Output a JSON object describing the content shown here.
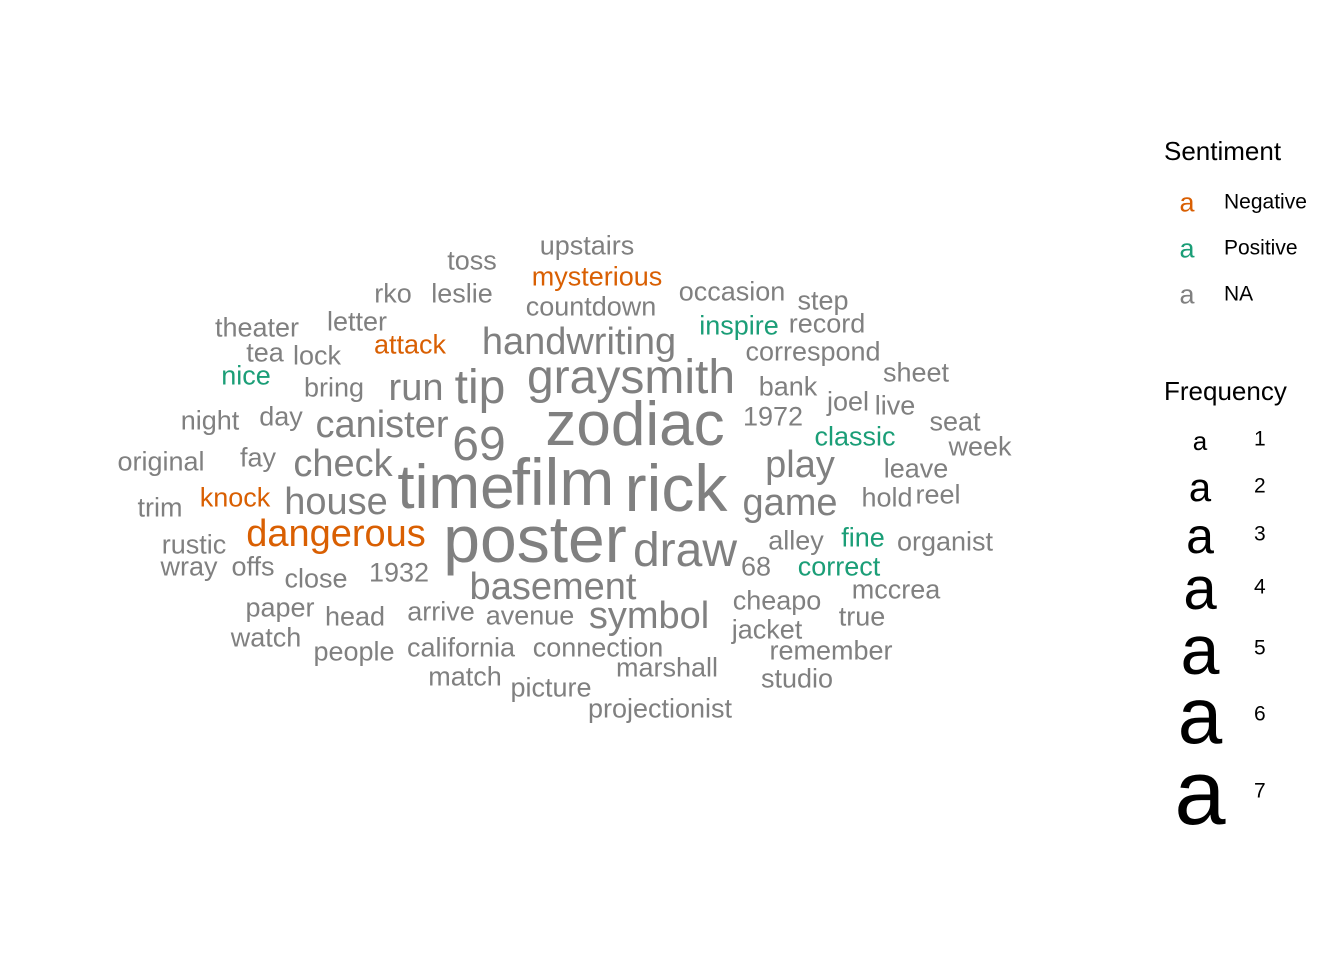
{
  "chart_data": {
    "type": "wordcloud",
    "legend": {
      "sentiment": {
        "title": "Sentiment",
        "key_glyph": "a",
        "entries": [
          {
            "label": "Negative",
            "color": "#D95F02"
          },
          {
            "label": "Positive",
            "color": "#1B9E77"
          },
          {
            "label": "NA",
            "color": "#808080"
          }
        ]
      },
      "frequency": {
        "title": "Frequency",
        "key_glyph": "a",
        "entries": [
          {
            "label": "1",
            "value": 1
          },
          {
            "label": "2",
            "value": 2
          },
          {
            "label": "3",
            "value": 3
          },
          {
            "label": "4",
            "value": 4
          },
          {
            "label": "5",
            "value": 5
          },
          {
            "label": "6",
            "value": 6
          },
          {
            "label": "7",
            "value": 7
          }
        ]
      }
    },
    "words": [
      {
        "word": "film",
        "frequency": 7,
        "sentiment": "NA"
      },
      {
        "word": "rick",
        "frequency": 7,
        "sentiment": "NA"
      },
      {
        "word": "poster",
        "frequency": 7,
        "sentiment": "NA"
      },
      {
        "word": "zodiac",
        "frequency": 6,
        "sentiment": "NA"
      },
      {
        "word": "time",
        "frequency": 6,
        "sentiment": "NA"
      },
      {
        "word": "graysmith",
        "frequency": 5,
        "sentiment": "NA"
      },
      {
        "word": "draw",
        "frequency": 5,
        "sentiment": "NA"
      },
      {
        "word": "69",
        "frequency": 5,
        "sentiment": "NA"
      },
      {
        "word": "tip",
        "frequency": 5,
        "sentiment": "NA"
      },
      {
        "word": "handwriting",
        "frequency": 4,
        "sentiment": "NA"
      },
      {
        "word": "basement",
        "frequency": 4,
        "sentiment": "NA"
      },
      {
        "word": "symbol",
        "frequency": 4,
        "sentiment": "NA"
      },
      {
        "word": "check",
        "frequency": 4,
        "sentiment": "NA"
      },
      {
        "word": "house",
        "frequency": 4,
        "sentiment": "NA"
      },
      {
        "word": "canister",
        "frequency": 4,
        "sentiment": "NA"
      },
      {
        "word": "game",
        "frequency": 4,
        "sentiment": "NA"
      },
      {
        "word": "play",
        "frequency": 4,
        "sentiment": "NA"
      },
      {
        "word": "run",
        "frequency": 4,
        "sentiment": "NA"
      },
      {
        "word": "dangerous",
        "frequency": 4,
        "sentiment": "Negative"
      },
      {
        "word": "mysterious",
        "frequency": 2,
        "sentiment": "Negative"
      },
      {
        "word": "attack",
        "frequency": 2,
        "sentiment": "Negative"
      },
      {
        "word": "knock",
        "frequency": 2,
        "sentiment": "Negative"
      },
      {
        "word": "inspire",
        "frequency": 2,
        "sentiment": "Positive"
      },
      {
        "word": "nice",
        "frequency": 2,
        "sentiment": "Positive"
      },
      {
        "word": "classic",
        "frequency": 2,
        "sentiment": "Positive"
      },
      {
        "word": "fine",
        "frequency": 2,
        "sentiment": "Positive"
      },
      {
        "word": "correct",
        "frequency": 2,
        "sentiment": "Positive"
      },
      {
        "word": "upstairs",
        "frequency": 2,
        "sentiment": "NA"
      },
      {
        "word": "toss",
        "frequency": 2,
        "sentiment": "NA"
      },
      {
        "word": "rko",
        "frequency": 2,
        "sentiment": "NA"
      },
      {
        "word": "leslie",
        "frequency": 2,
        "sentiment": "NA"
      },
      {
        "word": "countdown",
        "frequency": 2,
        "sentiment": "NA"
      },
      {
        "word": "occasion",
        "frequency": 2,
        "sentiment": "NA"
      },
      {
        "word": "step",
        "frequency": 2,
        "sentiment": "NA"
      },
      {
        "word": "record",
        "frequency": 2,
        "sentiment": "NA"
      },
      {
        "word": "theater",
        "frequency": 2,
        "sentiment": "NA"
      },
      {
        "word": "letter",
        "frequency": 2,
        "sentiment": "NA"
      },
      {
        "word": "tea",
        "frequency": 2,
        "sentiment": "NA"
      },
      {
        "word": "lock",
        "frequency": 2,
        "sentiment": "NA"
      },
      {
        "word": "correspond",
        "frequency": 2,
        "sentiment": "NA"
      },
      {
        "word": "sheet",
        "frequency": 2,
        "sentiment": "NA"
      },
      {
        "word": "bring",
        "frequency": 2,
        "sentiment": "NA"
      },
      {
        "word": "bank",
        "frequency": 2,
        "sentiment": "NA"
      },
      {
        "word": "joel",
        "frequency": 2,
        "sentiment": "NA"
      },
      {
        "word": "live",
        "frequency": 2,
        "sentiment": "NA"
      },
      {
        "word": "night",
        "frequency": 2,
        "sentiment": "NA"
      },
      {
        "word": "day",
        "frequency": 2,
        "sentiment": "NA"
      },
      {
        "word": "1972",
        "frequency": 2,
        "sentiment": "NA"
      },
      {
        "word": "seat",
        "frequency": 2,
        "sentiment": "NA"
      },
      {
        "word": "week",
        "frequency": 2,
        "sentiment": "NA"
      },
      {
        "word": "original",
        "frequency": 2,
        "sentiment": "NA"
      },
      {
        "word": "fay",
        "frequency": 2,
        "sentiment": "NA"
      },
      {
        "word": "leave",
        "frequency": 2,
        "sentiment": "NA"
      },
      {
        "word": "hold",
        "frequency": 2,
        "sentiment": "NA"
      },
      {
        "word": "reel",
        "frequency": 2,
        "sentiment": "NA"
      },
      {
        "word": "trim",
        "frequency": 2,
        "sentiment": "NA"
      },
      {
        "word": "rustic",
        "frequency": 2,
        "sentiment": "NA"
      },
      {
        "word": "alley",
        "frequency": 2,
        "sentiment": "NA"
      },
      {
        "word": "organist",
        "frequency": 2,
        "sentiment": "NA"
      },
      {
        "word": "wray",
        "frequency": 2,
        "sentiment": "NA"
      },
      {
        "word": "offs",
        "frequency": 2,
        "sentiment": "NA"
      },
      {
        "word": "close",
        "frequency": 2,
        "sentiment": "NA"
      },
      {
        "word": "1932",
        "frequency": 2,
        "sentiment": "NA"
      },
      {
        "word": "68",
        "frequency": 2,
        "sentiment": "NA"
      },
      {
        "word": "mccrea",
        "frequency": 2,
        "sentiment": "NA"
      },
      {
        "word": "paper",
        "frequency": 2,
        "sentiment": "NA"
      },
      {
        "word": "head",
        "frequency": 2,
        "sentiment": "NA"
      },
      {
        "word": "arrive",
        "frequency": 2,
        "sentiment": "NA"
      },
      {
        "word": "avenue",
        "frequency": 2,
        "sentiment": "NA"
      },
      {
        "word": "cheapo",
        "frequency": 2,
        "sentiment": "NA"
      },
      {
        "word": "true",
        "frequency": 2,
        "sentiment": "NA"
      },
      {
        "word": "watch",
        "frequency": 2,
        "sentiment": "NA"
      },
      {
        "word": "jacket",
        "frequency": 2,
        "sentiment": "NA"
      },
      {
        "word": "people",
        "frequency": 2,
        "sentiment": "NA"
      },
      {
        "word": "california",
        "frequency": 2,
        "sentiment": "NA"
      },
      {
        "word": "connection",
        "frequency": 2,
        "sentiment": "NA"
      },
      {
        "word": "remember",
        "frequency": 2,
        "sentiment": "NA"
      },
      {
        "word": "marshall",
        "frequency": 2,
        "sentiment": "NA"
      },
      {
        "word": "match",
        "frequency": 2,
        "sentiment": "NA"
      },
      {
        "word": "picture",
        "frequency": 2,
        "sentiment": "NA"
      },
      {
        "word": "studio",
        "frequency": 2,
        "sentiment": "NA"
      },
      {
        "word": "projectionist",
        "frequency": 2,
        "sentiment": "NA"
      }
    ]
  }
}
